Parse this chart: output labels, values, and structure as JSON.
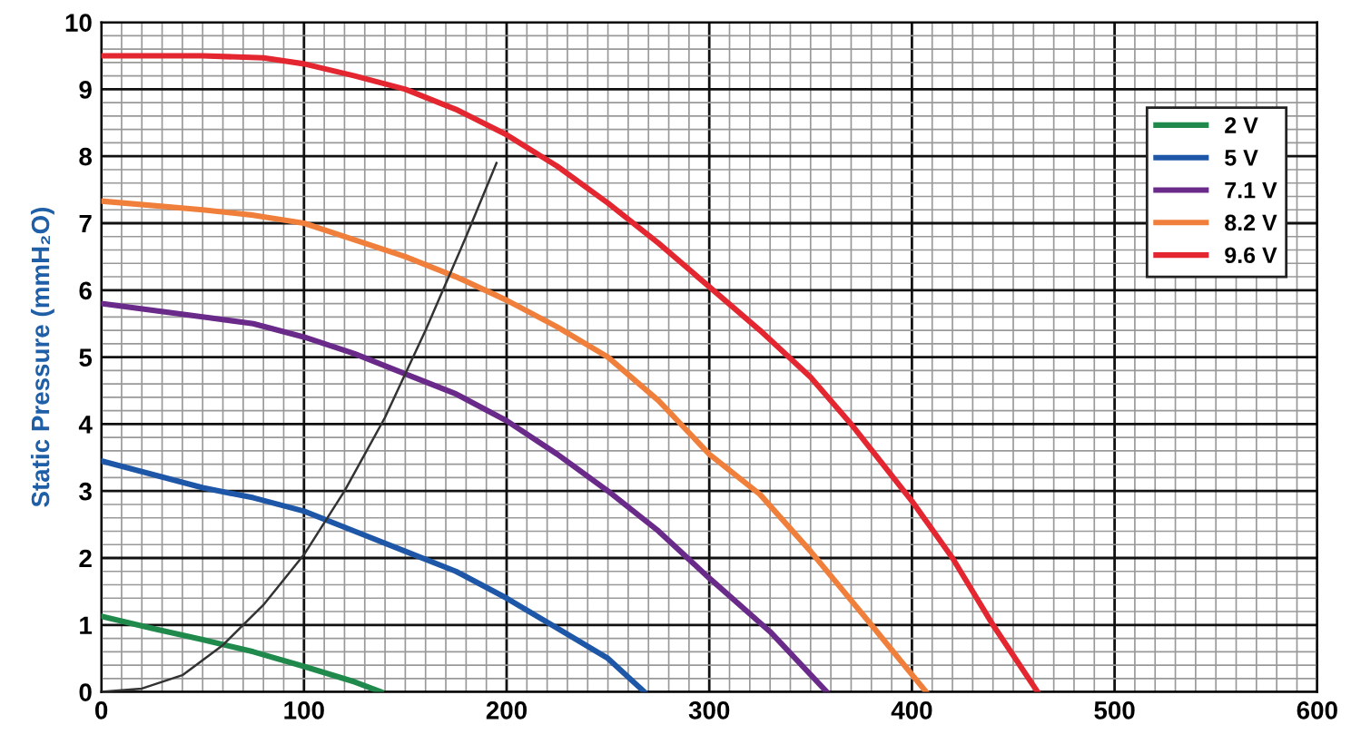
{
  "chart_data": {
    "type": "line",
    "ylabel": "Static Pressure (mmH₂O)",
    "xlim": [
      0,
      600
    ],
    "ylim": [
      0,
      10
    ],
    "xticks": [
      0,
      100,
      200,
      300,
      400,
      500,
      600
    ],
    "yticks": [
      0,
      1,
      2,
      3,
      4,
      5,
      6,
      7,
      8,
      9,
      10
    ],
    "grid": true,
    "legend": "top right",
    "marker": "none",
    "line_style": "solid",
    "series": [
      {
        "name": "2 V",
        "color": "#1f8a4c",
        "x": [
          0,
          25,
          50,
          75,
          100,
          125,
          138
        ],
        "values": [
          1.13,
          0.95,
          0.78,
          0.6,
          0.38,
          0.15,
          0
        ]
      },
      {
        "name": "5 V",
        "color": "#1e57a8",
        "x": [
          0,
          25,
          50,
          75,
          100,
          125,
          150,
          175,
          200,
          225,
          250,
          268
        ],
        "values": [
          3.45,
          3.25,
          3.05,
          2.9,
          2.7,
          2.4,
          2.1,
          1.8,
          1.4,
          0.95,
          0.5,
          0
        ]
      },
      {
        "name": "7.1 V",
        "color": "#6a2a8a",
        "x": [
          0,
          50,
          75,
          100,
          125,
          150,
          175,
          200,
          225,
          250,
          275,
          300,
          330,
          358
        ],
        "values": [
          5.8,
          5.6,
          5.5,
          5.3,
          5.05,
          4.75,
          4.45,
          4.05,
          3.55,
          3.0,
          2.4,
          1.7,
          0.9,
          0
        ]
      },
      {
        "name": "8.2 V",
        "color": "#f07f3c",
        "x": [
          0,
          50,
          75,
          100,
          125,
          150,
          175,
          200,
          225,
          250,
          275,
          300,
          325,
          350,
          380,
          407
        ],
        "values": [
          7.33,
          7.2,
          7.12,
          7.0,
          6.75,
          6.5,
          6.2,
          5.85,
          5.45,
          5.0,
          4.35,
          3.55,
          2.95,
          2.1,
          1.0,
          0
        ]
      },
      {
        "name": "9.6 V",
        "color": "#e3262f",
        "x": [
          0,
          50,
          80,
          100,
          125,
          150,
          175,
          200,
          225,
          250,
          275,
          300,
          325,
          350,
          370,
          400,
          420,
          440,
          462
        ],
        "values": [
          9.5,
          9.5,
          9.47,
          9.38,
          9.2,
          9.0,
          8.7,
          8.32,
          7.85,
          7.3,
          6.7,
          6.05,
          5.4,
          4.7,
          4.0,
          2.85,
          2.0,
          1.0,
          0
        ]
      },
      {
        "color": "#333333",
        "x": [
          0,
          20,
          40,
          60,
          80,
          100,
          120,
          140,
          160,
          180,
          195
        ],
        "values": [
          0,
          0.05,
          0.25,
          0.7,
          1.3,
          2.05,
          3.0,
          4.1,
          5.4,
          6.8,
          7.9
        ]
      }
    ]
  }
}
